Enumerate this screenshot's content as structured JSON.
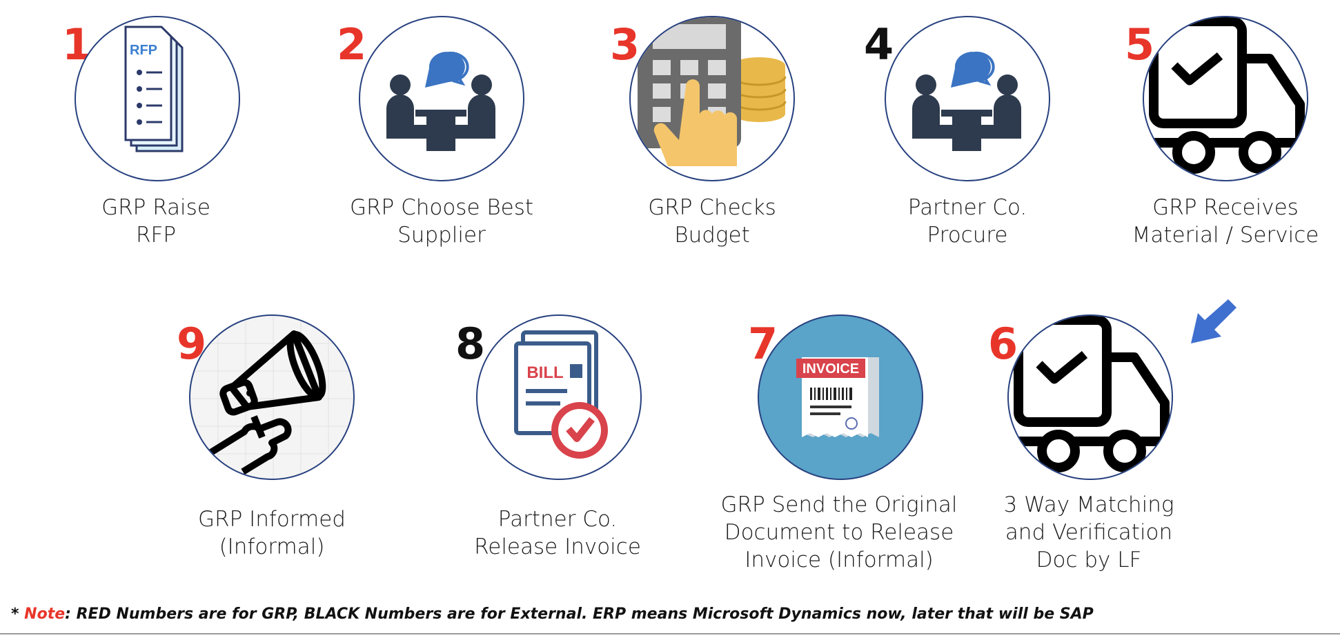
{
  "steps": [
    {
      "number": "1",
      "color": "#e8352a",
      "lines": [
        "GRP Raise",
        "RFP"
      ],
      "icon": "rfp-document-icon",
      "icon_text": "RFP"
    },
    {
      "number": "2",
      "color": "#e8352a",
      "lines": [
        "GRP Choose Best",
        "Supplier"
      ],
      "icon": "meeting-discussion-icon"
    },
    {
      "number": "3",
      "color": "#e8352a",
      "lines": [
        "GRP Checks",
        "Budget"
      ],
      "icon": "calculator-coins-icon"
    },
    {
      "number": "4",
      "color": "#111111",
      "lines": [
        "Partner Co.",
        "Procure"
      ],
      "icon": "meeting-discussion-icon"
    },
    {
      "number": "5",
      "color": "#e8352a",
      "lines": [
        "GRP Receives",
        "Material / Service"
      ],
      "icon": "delivery-truck-check-icon"
    },
    {
      "number": "6",
      "color": "#e8352a",
      "lines": [
        "3 Way Matching",
        "and Verification",
        "Doc by LF"
      ],
      "icon": "delivery-truck-check-icon"
    },
    {
      "number": "7",
      "color": "#e8352a",
      "lines": [
        "GRP Send the Original",
        "Document to Release",
        "Invoice (Informal)"
      ],
      "icon": "invoice-receipt-icon",
      "icon_text": "INVOICE"
    },
    {
      "number": "8",
      "color": "#111111",
      "lines": [
        "Partner Co.",
        "Release Invoice"
      ],
      "icon": "bill-approved-icon",
      "icon_text": "BILL"
    },
    {
      "number": "9",
      "color": "#e8352a",
      "lines": [
        "GRP Informed",
        "(Informal)"
      ],
      "icon": "megaphone-icon"
    }
  ],
  "note": {
    "prefix": "* ",
    "highlight": "Note",
    "text": ": RED Numbers are for GRP, BLACK Numbers are for External. ERP means Microsoft Dynamics now, later that will be SAP"
  },
  "connector_icon": "down-left-arrow-icon"
}
